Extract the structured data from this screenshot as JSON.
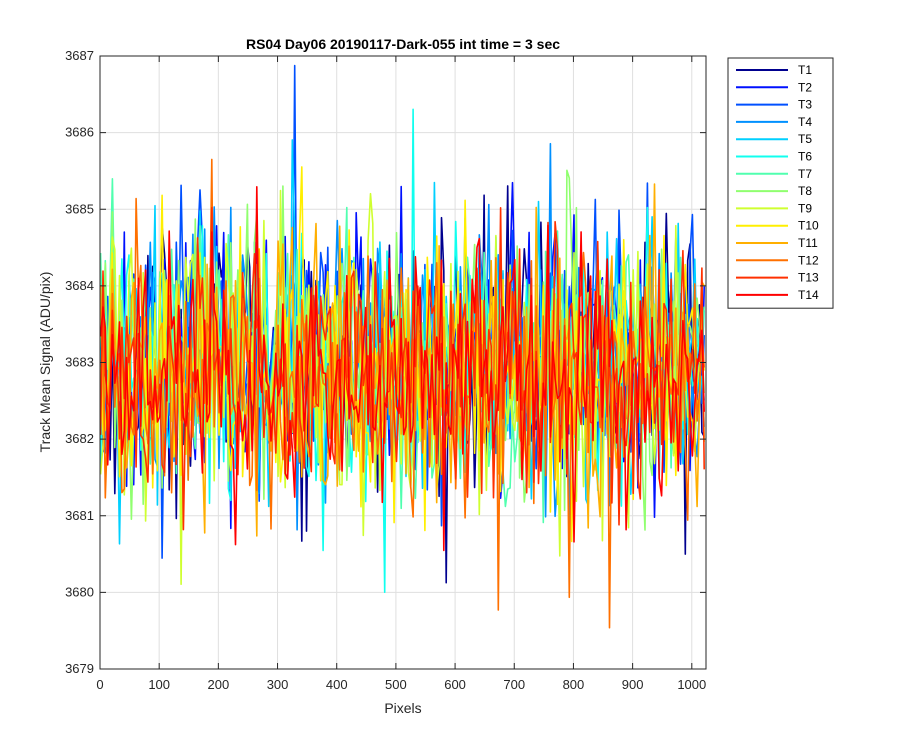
{
  "chart_data": {
    "type": "line",
    "title": "RS04 Day06 20190117-Dark-055 int time = 3 sec",
    "xlabel": "Pixels",
    "ylabel": "Track Mean Signal (ADU/pix)",
    "xlim": [
      0,
      1024
    ],
    "ylim": [
      3679,
      3687
    ],
    "xticks": [
      0,
      100,
      200,
      300,
      400,
      500,
      600,
      700,
      800,
      900,
      1000
    ],
    "yticks": [
      3679,
      3680,
      3681,
      3682,
      3683,
      3684,
      3685,
      3686,
      3687
    ],
    "grid": true,
    "legend_position": "outside-top-right",
    "x_range_samples": {
      "start": 1,
      "end": 1024,
      "step": 4
    },
    "series": [
      {
        "name": "T1",
        "color": "#00008F",
        "mean": 3683.1,
        "spread": 0.85
      },
      {
        "name": "T2",
        "color": "#0010FF",
        "mean": 3683.1,
        "spread": 0.85
      },
      {
        "name": "T3",
        "color": "#0050FF",
        "mean": 3683.1,
        "spread": 0.85
      },
      {
        "name": "T4",
        "color": "#0090FF",
        "mean": 3683.0,
        "spread": 0.85
      },
      {
        "name": "T5",
        "color": "#00D0FF",
        "mean": 3683.0,
        "spread": 0.85
      },
      {
        "name": "T6",
        "color": "#10FFEF",
        "mean": 3683.0,
        "spread": 0.85
      },
      {
        "name": "T7",
        "color": "#50FFAF",
        "mean": 3683.0,
        "spread": 0.85
      },
      {
        "name": "T8",
        "color": "#90FF6F",
        "mean": 3683.0,
        "spread": 0.85
      },
      {
        "name": "T9",
        "color": "#CFFF30",
        "mean": 3682.9,
        "spread": 0.85
      },
      {
        "name": "T10",
        "color": "#FFEF00",
        "mean": 3682.9,
        "spread": 0.85
      },
      {
        "name": "T11",
        "color": "#FFAF00",
        "mean": 3682.9,
        "spread": 0.85
      },
      {
        "name": "T12",
        "color": "#FF7000",
        "mean": 3682.8,
        "spread": 0.85
      },
      {
        "name": "T13",
        "color": "#FF3000",
        "mean": 3682.8,
        "spread": 0.85
      },
      {
        "name": "T14",
        "color": "#FF0000",
        "mean": 3682.7,
        "spread": 0.85
      }
    ]
  }
}
